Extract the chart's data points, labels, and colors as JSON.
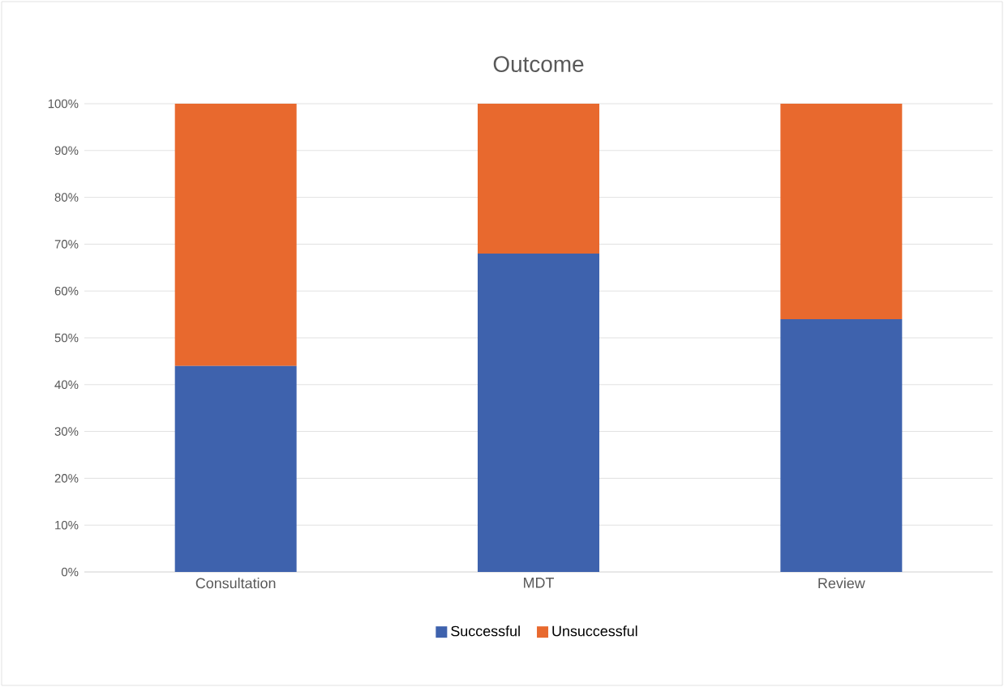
{
  "chart_data": {
    "type": "bar",
    "title": "Outcome",
    "stacked": true,
    "categories": [
      "Consultation",
      "MDT",
      "Review"
    ],
    "series": [
      {
        "name": "Successful",
        "color": "#3e62ad",
        "values": [
          44,
          68,
          54
        ]
      },
      {
        "name": "Unsuccessful",
        "color": "#e8692e",
        "values": [
          56,
          32,
          46
        ]
      }
    ],
    "ylim": [
      0,
      100
    ],
    "yticks": [
      {
        "value": 0,
        "label": "0%"
      },
      {
        "value": 10,
        "label": "10%"
      },
      {
        "value": 20,
        "label": "20%"
      },
      {
        "value": 30,
        "label": "30%"
      },
      {
        "value": 40,
        "label": "40%"
      },
      {
        "value": 50,
        "label": "50%"
      },
      {
        "value": 60,
        "label": "60%"
      },
      {
        "value": 70,
        "label": "70%"
      },
      {
        "value": 80,
        "label": "80%"
      },
      {
        "value": 90,
        "label": "90%"
      },
      {
        "value": 100,
        "label": "100%"
      }
    ],
    "grid": "y",
    "legend": "bottom"
  }
}
